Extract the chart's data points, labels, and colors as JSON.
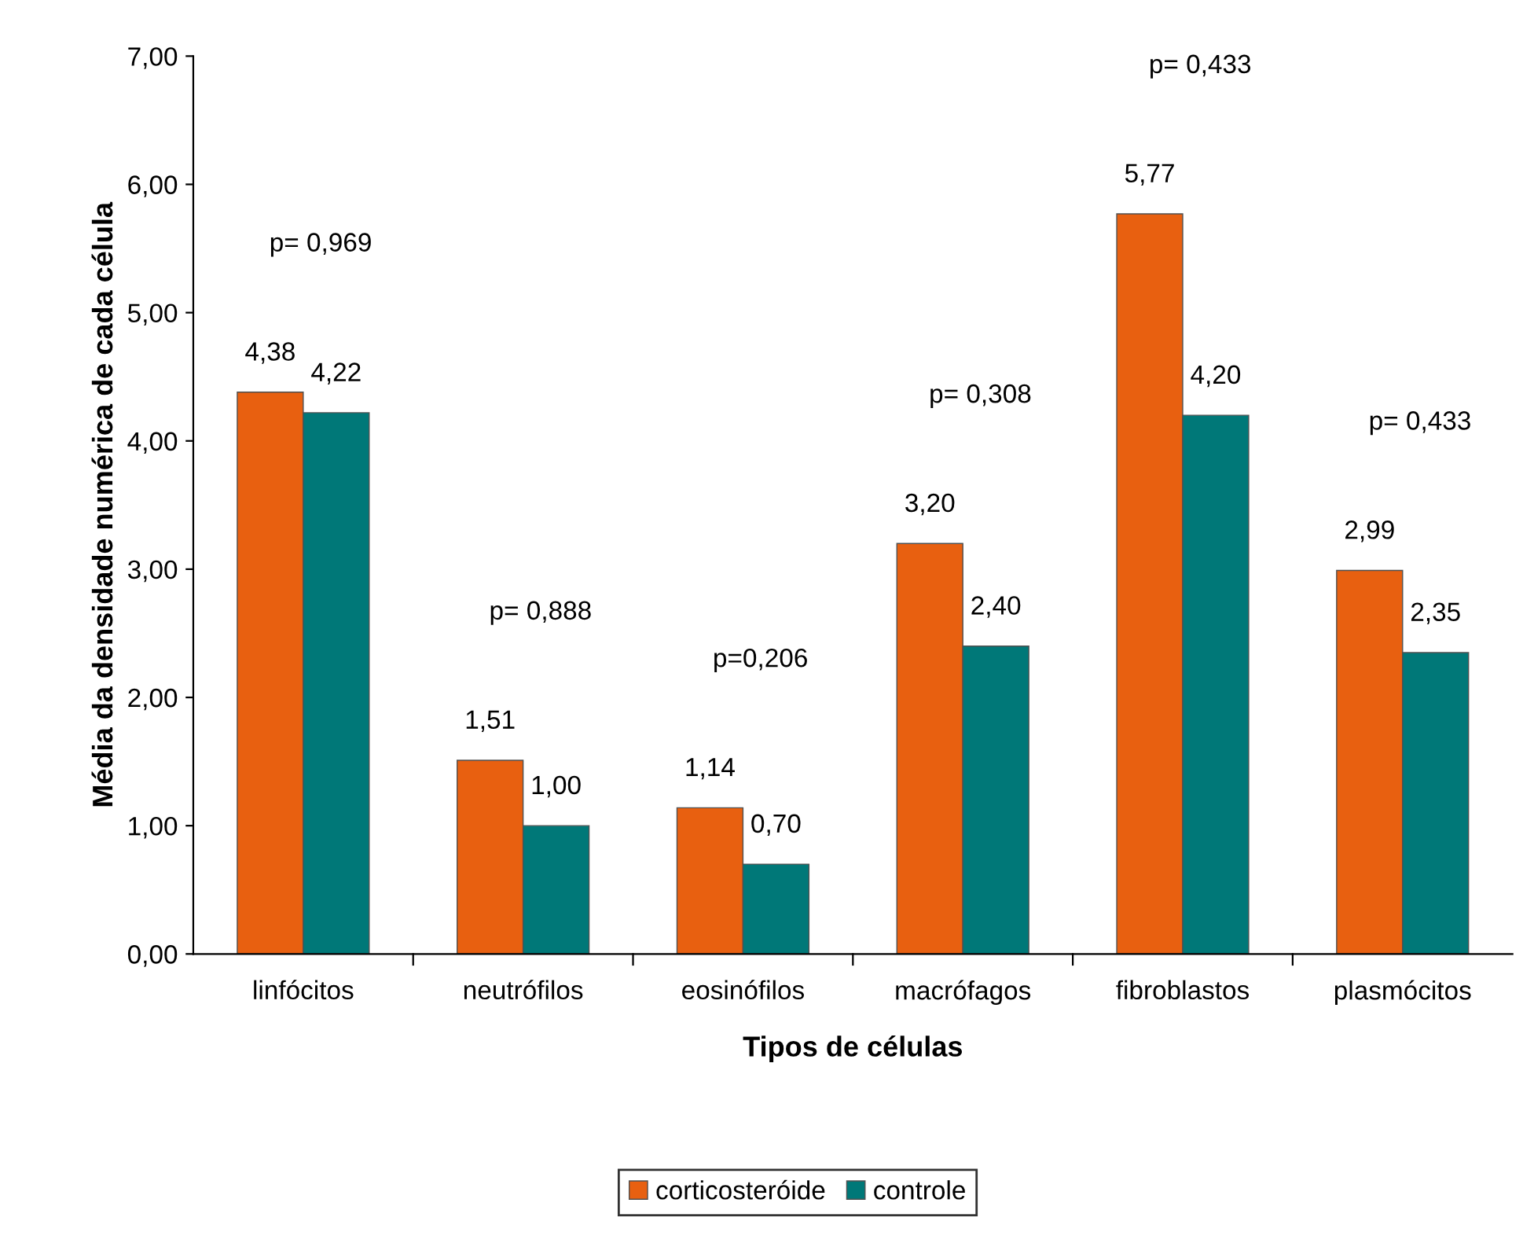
{
  "chart_data": {
    "type": "bar",
    "xlabel": "Tipos de células",
    "ylabel": "Média da densidade numérica de cada célula",
    "categories": [
      "linfócitos",
      "neutrófilos",
      "eosinófilos",
      "macrófagos",
      "fibroblastos",
      "plasmócitos"
    ],
    "series": [
      {
        "name": "corticosteróide",
        "color": "#e86010",
        "values": [
          4.38,
          1.51,
          1.14,
          3.2,
          5.77,
          2.99
        ],
        "value_labels": [
          "4,38",
          "1,51",
          "1,14",
          "3,20",
          "5,77",
          "2,99"
        ]
      },
      {
        "name": "controle",
        "color": "#007878",
        "values": [
          4.22,
          1.0,
          0.7,
          2.4,
          4.2,
          2.35
        ],
        "value_labels": [
          "4,22",
          "1,00",
          "0,70",
          "2,40",
          "4,20",
          "2,35"
        ]
      }
    ],
    "ylim": [
      0,
      7
    ],
    "yticks": [
      {
        "value": 0,
        "label": "0,00"
      },
      {
        "value": 1,
        "label": "1,00"
      },
      {
        "value": 2,
        "label": "2,00"
      },
      {
        "value": 3,
        "label": "3,00"
      },
      {
        "value": 4,
        "label": "4,00"
      },
      {
        "value": 5,
        "label": "5,00"
      },
      {
        "value": 6,
        "label": "6,00"
      },
      {
        "value": 7,
        "label": "7,00"
      }
    ],
    "annotations": [
      "p= 0,969",
      "p= 0,888",
      "p=0,206",
      "p= 0,308",
      "p= 0,433",
      "p= 0,433"
    ],
    "legend": "bottom",
    "grid": false
  }
}
